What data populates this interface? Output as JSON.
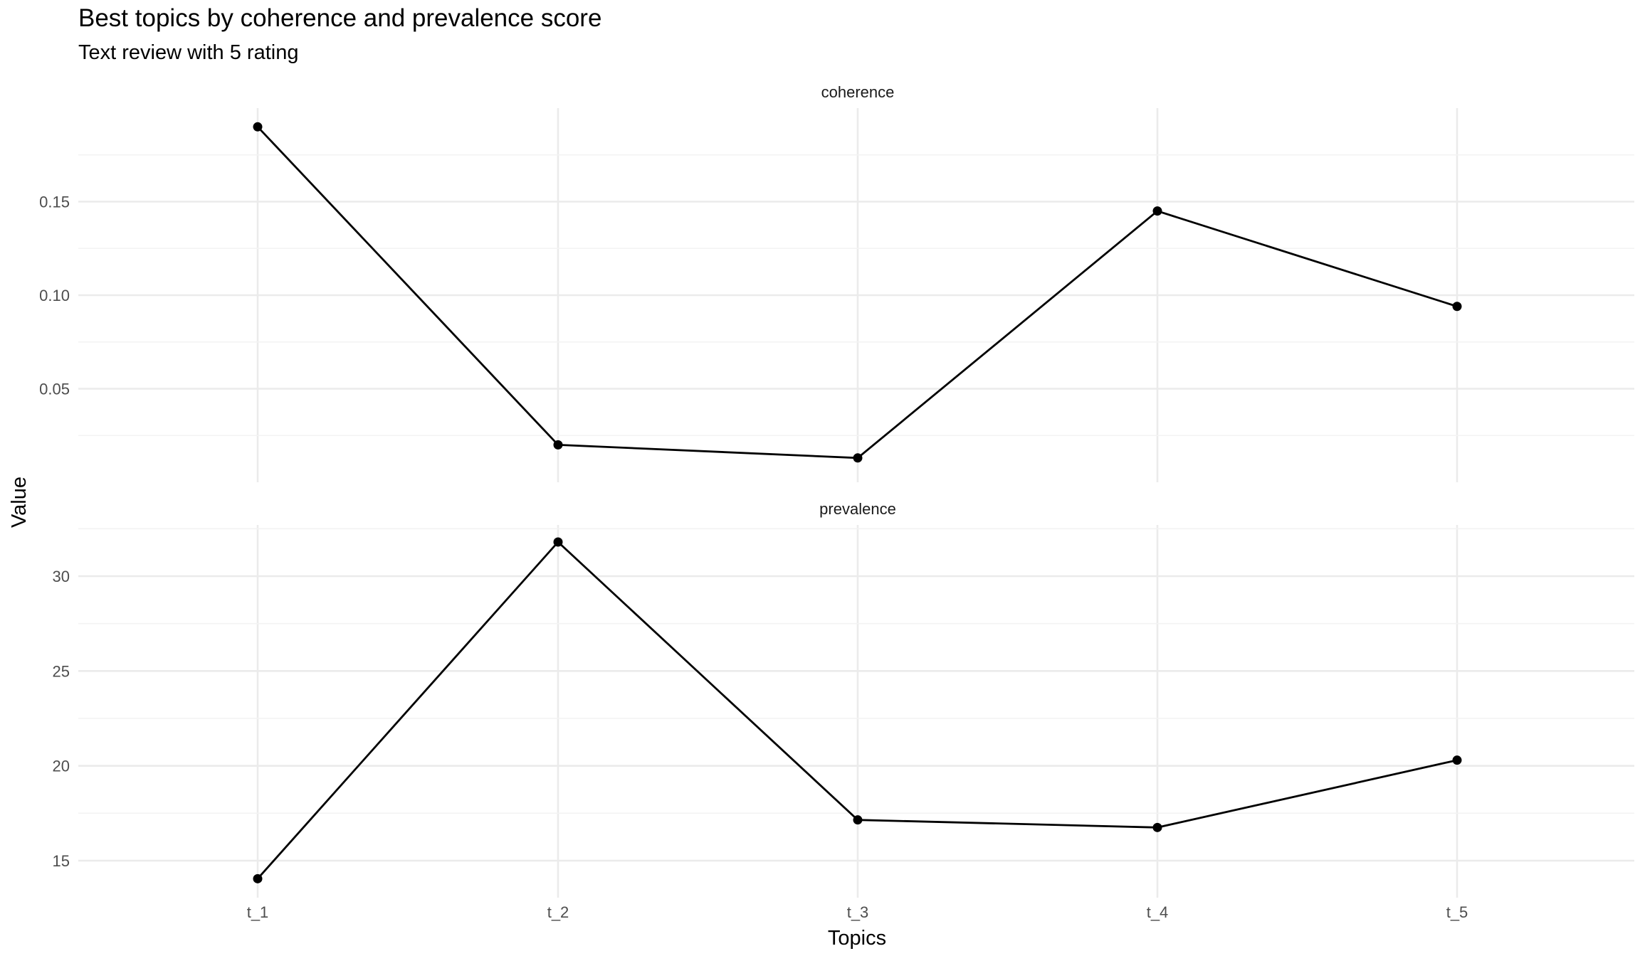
{
  "chart_data": {
    "type": "line",
    "title": "Best topics by coherence and prevalence score",
    "subtitle": "Text review with 5 rating",
    "xlabel": "Topics",
    "ylabel": "Value",
    "categories": [
      "t_1",
      "t_2",
      "t_3",
      "t_4",
      "t_5"
    ],
    "grid": true,
    "facets": [
      {
        "name": "coherence",
        "values": [
          0.19,
          0.02,
          0.013,
          0.145,
          0.094
        ],
        "ylim": [
          0.0,
          0.2
        ],
        "yticks": [
          0.05,
          0.1,
          0.15
        ],
        "ytick_labels": [
          "0.05",
          "0.10",
          "0.15"
        ]
      },
      {
        "name": "prevalence",
        "values": [
          14.05,
          31.8,
          17.15,
          16.75,
          20.3
        ],
        "ylim": [
          13.05,
          32.7
        ],
        "yticks": [
          15,
          20,
          25,
          30
        ],
        "ytick_labels": [
          "15",
          "20",
          "25",
          "30"
        ]
      }
    ]
  }
}
